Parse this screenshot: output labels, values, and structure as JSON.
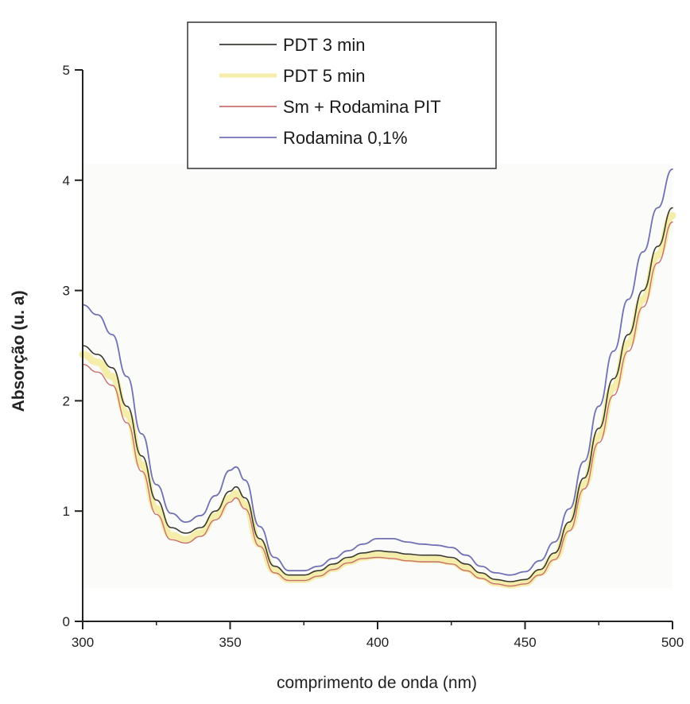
{
  "chart_data": {
    "type": "line",
    "title": "",
    "xlabel": "comprimento de onda (nm)",
    "ylabel": "Absorção (u. a)",
    "xlim": [
      300,
      500
    ],
    "ylim": [
      0,
      5
    ],
    "xticks": [
      300,
      350,
      400,
      450,
      500
    ],
    "yticks": [
      0,
      1,
      2,
      3,
      4,
      5
    ],
    "grid": false,
    "legend_position": "top-center",
    "x": [
      300,
      305,
      310,
      315,
      320,
      325,
      330,
      335,
      340,
      345,
      350,
      352,
      355,
      360,
      365,
      370,
      375,
      380,
      385,
      390,
      395,
      400,
      405,
      410,
      415,
      420,
      425,
      430,
      435,
      440,
      445,
      450,
      455,
      460,
      465,
      470,
      475,
      480,
      485,
      490,
      495,
      500
    ],
    "series": [
      {
        "name": "PDT 3 min",
        "color": "#3a3a30",
        "values": [
          2.5,
          2.42,
          2.3,
          1.95,
          1.5,
          1.1,
          0.85,
          0.8,
          0.85,
          1.0,
          1.18,
          1.22,
          1.12,
          0.75,
          0.5,
          0.42,
          0.42,
          0.46,
          0.52,
          0.58,
          0.62,
          0.64,
          0.63,
          0.61,
          0.6,
          0.6,
          0.58,
          0.52,
          0.44,
          0.38,
          0.36,
          0.38,
          0.47,
          0.62,
          0.9,
          1.3,
          1.75,
          2.2,
          2.6,
          3.0,
          3.4,
          3.75
        ]
      },
      {
        "name": "PDT 5 min",
        "color": "#f5eeaa",
        "values": [
          2.42,
          2.35,
          2.22,
          1.88,
          1.42,
          1.02,
          0.78,
          0.74,
          0.8,
          0.95,
          1.12,
          1.16,
          1.06,
          0.7,
          0.46,
          0.38,
          0.38,
          0.42,
          0.48,
          0.54,
          0.58,
          0.6,
          0.59,
          0.57,
          0.56,
          0.56,
          0.54,
          0.48,
          0.41,
          0.35,
          0.33,
          0.35,
          0.44,
          0.58,
          0.85,
          1.24,
          1.68,
          2.12,
          2.52,
          2.92,
          3.32,
          3.68
        ]
      },
      {
        "name": "Sm + Rodamina PIT",
        "color": "#c87070",
        "values": [
          2.33,
          2.26,
          2.14,
          1.8,
          1.36,
          0.97,
          0.74,
          0.71,
          0.77,
          0.92,
          1.08,
          1.12,
          1.02,
          0.68,
          0.44,
          0.37,
          0.37,
          0.41,
          0.47,
          0.53,
          0.57,
          0.58,
          0.57,
          0.55,
          0.54,
          0.54,
          0.52,
          0.46,
          0.39,
          0.34,
          0.32,
          0.34,
          0.42,
          0.56,
          0.82,
          1.2,
          1.62,
          2.05,
          2.45,
          2.85,
          3.25,
          3.62
        ]
      },
      {
        "name": "Rodamina 0,1%",
        "color": "#7070b4",
        "values": [
          2.87,
          2.78,
          2.6,
          2.22,
          1.7,
          1.24,
          0.98,
          0.9,
          0.96,
          1.14,
          1.37,
          1.4,
          1.28,
          0.86,
          0.58,
          0.46,
          0.46,
          0.5,
          0.57,
          0.64,
          0.7,
          0.75,
          0.75,
          0.72,
          0.7,
          0.69,
          0.67,
          0.6,
          0.5,
          0.44,
          0.42,
          0.45,
          0.55,
          0.72,
          1.02,
          1.45,
          1.95,
          2.45,
          2.92,
          3.35,
          3.75,
          4.1
        ]
      }
    ]
  }
}
